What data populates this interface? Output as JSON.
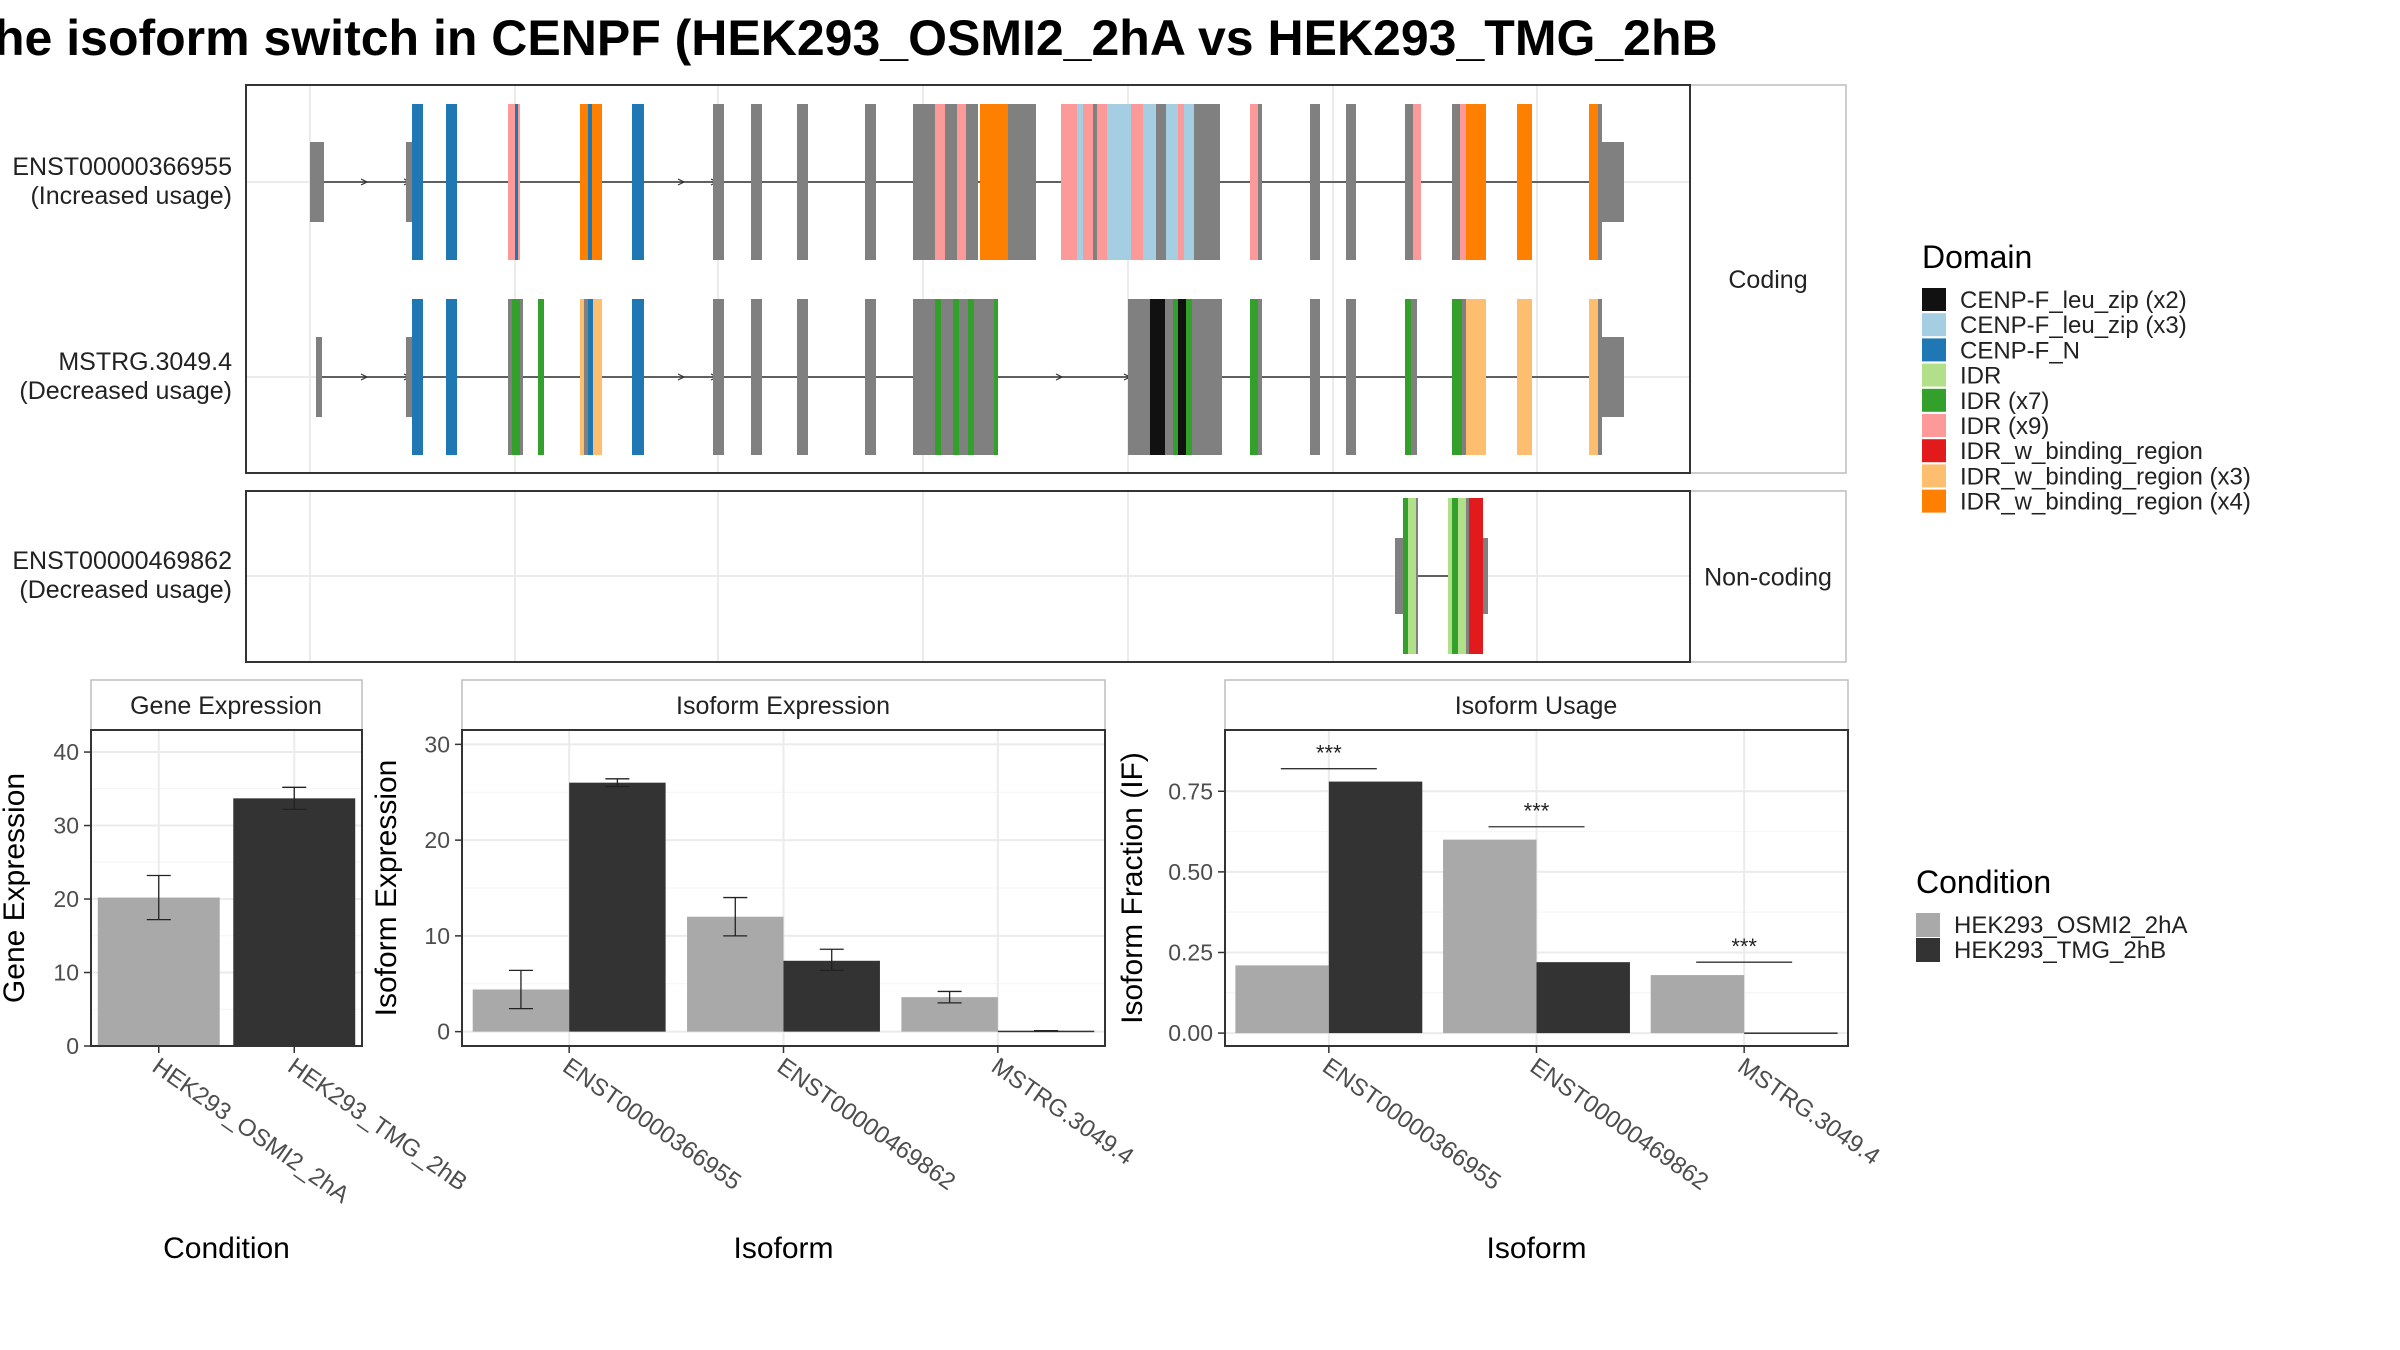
{
  "title": "he isoform switch in CENPF (HEK293_OSMI2_2hA vs HEK293_TMG_2hB",
  "structure": {
    "facets": [
      "Coding",
      "Non-coding"
    ],
    "isoforms": [
      {
        "id": "ENST00000366955",
        "usage": "(Increased usage)",
        "facet": 0
      },
      {
        "id": "MSTRG.3049.4",
        "usage": "(Decreased usage)",
        "facet": 0
      },
      {
        "id": "ENST00000469862",
        "usage": "(Decreased usage)",
        "facet": 1
      }
    ]
  },
  "legends": {
    "domain": {
      "title": "Domain",
      "items": [
        {
          "label": "CENP-F_leu_zip (x2)",
          "color": "#111111"
        },
        {
          "label": "CENP-F_leu_zip (x3)",
          "color": "#a6cee3"
        },
        {
          "label": "CENP-F_N",
          "color": "#1f78b4"
        },
        {
          "label": "IDR",
          "color": "#b2df8a"
        },
        {
          "label": "IDR (x7)",
          "color": "#33a02c"
        },
        {
          "label": "IDR (x9)",
          "color": "#fb9a99"
        },
        {
          "label": "IDR_w_binding_region",
          "color": "#e31a1c"
        },
        {
          "label": "IDR_w_binding_region (x3)",
          "color": "#fdbf6f"
        },
        {
          "label": "IDR_w_binding_region (x4)",
          "color": "#ff7f00"
        }
      ]
    },
    "condition": {
      "title": "Condition",
      "items": [
        {
          "label": "HEK293_OSMI2_2hA",
          "color": "#a9a9a9"
        },
        {
          "label": "HEK293_TMG_2hB",
          "color": "#333333"
        }
      ]
    }
  },
  "chart_data": [
    {
      "type": "bar",
      "title": "Gene Expression",
      "xlabel": "Condition",
      "ylabel": "Gene Expression",
      "ylim": [
        0,
        43
      ],
      "yticks": [
        0,
        10,
        20,
        30,
        40
      ],
      "categories": [
        "HEK293_OSMI2_2hA",
        "HEK293_TMG_2hB"
      ],
      "values": [
        20.2,
        33.7
      ],
      "errors": [
        [
          17.2,
          23.2
        ],
        [
          32.2,
          35.2
        ]
      ]
    },
    {
      "type": "bar",
      "title": "Isoform Expression",
      "xlabel": "Isoform",
      "ylabel": "Isoform Expression",
      "ylim": [
        -1.5,
        31.5
      ],
      "yticks": [
        0,
        10,
        20,
        30
      ],
      "categories": [
        "ENST00000366955",
        "ENST00000469862",
        "MSTRG.3049.4"
      ],
      "series": [
        {
          "name": "HEK293_OSMI2_2hA",
          "values": [
            4.4,
            12.0,
            3.6
          ],
          "errors": [
            [
              2.4,
              6.4
            ],
            [
              10.0,
              14.0
            ],
            [
              3.0,
              4.2
            ]
          ]
        },
        {
          "name": "HEK293_TMG_2hB",
          "values": [
            26.0,
            7.4,
            0.1
          ],
          "errors": [
            [
              25.6,
              26.4
            ],
            [
              6.4,
              8.6
            ],
            [
              0.1,
              0.1
            ]
          ]
        }
      ]
    },
    {
      "type": "bar",
      "title": "Isoform Usage",
      "xlabel": "Isoform",
      "ylabel": "Isoform Fraction (IF)",
      "ylim": [
        -0.04,
        0.94
      ],
      "yticks": [
        0.0,
        0.25,
        0.5,
        0.75
      ],
      "ytick_labels": [
        "0.00",
        "0.25",
        "0.50",
        "0.75"
      ],
      "categories": [
        "ENST00000366955",
        "ENST00000469862",
        "MSTRG.3049.4"
      ],
      "series": [
        {
          "name": "HEK293_OSMI2_2hA",
          "values": [
            0.21,
            0.6,
            0.18
          ]
        },
        {
          "name": "HEK293_TMG_2hB",
          "values": [
            0.78,
            0.22,
            0.0
          ]
        }
      ],
      "significance": [
        {
          "category": 0,
          "label": "***",
          "y": 0.82
        },
        {
          "category": 1,
          "label": "***",
          "y": 0.64
        },
        {
          "category": 2,
          "label": "***",
          "y": 0.22
        }
      ]
    }
  ]
}
